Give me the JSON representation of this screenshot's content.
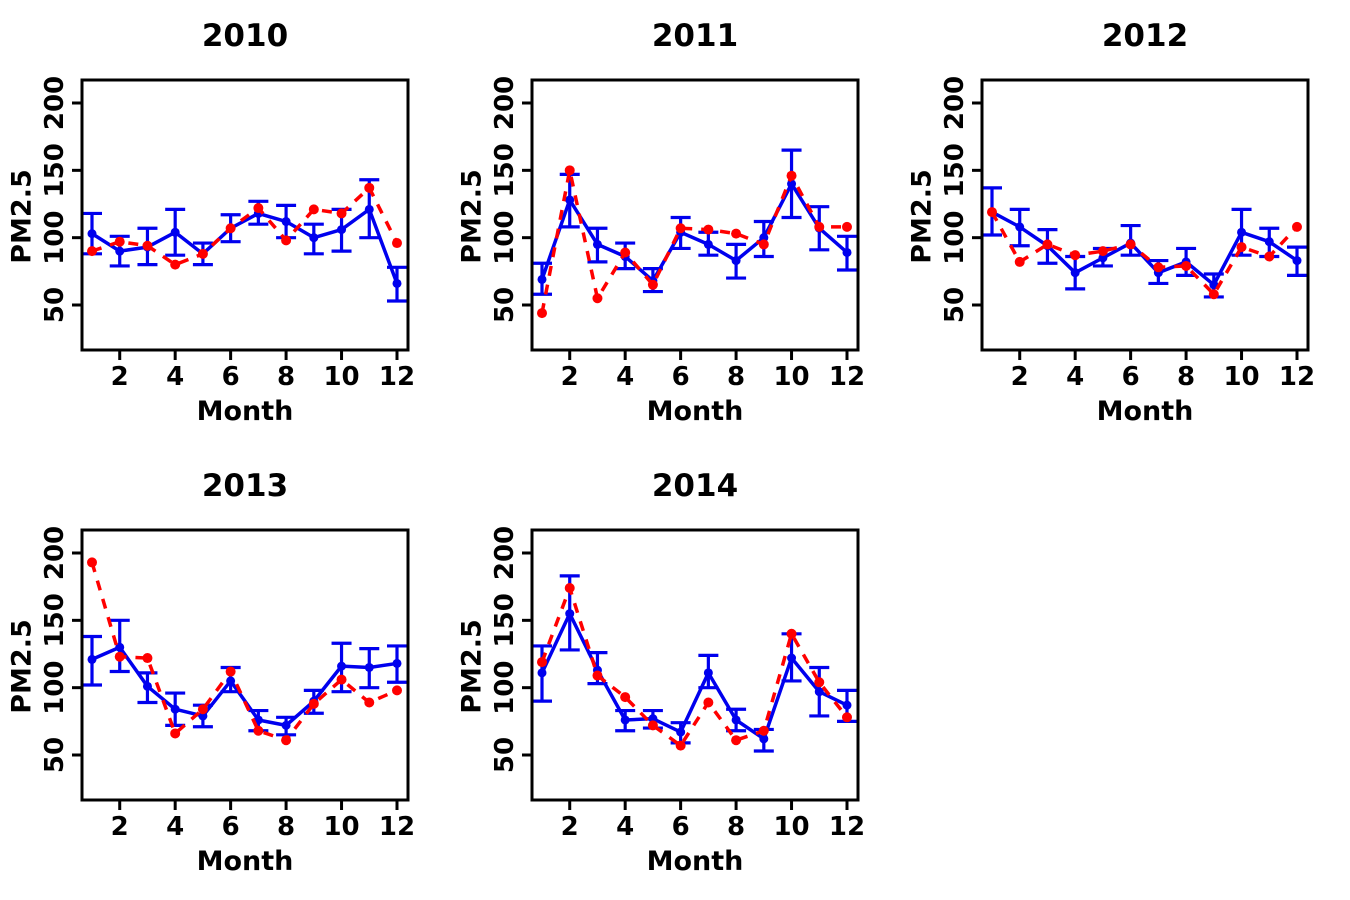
{
  "page": {
    "background": "#ffffff"
  },
  "colors": {
    "series_blue": "#0000EE",
    "series_red": "#FF0000",
    "axis": "#000000"
  },
  "chart_data": [
    {
      "type": "line",
      "title": "2010",
      "xlabel": "Month",
      "ylabel": "PM2.5",
      "x": [
        1,
        2,
        3,
        4,
        5,
        6,
        7,
        8,
        9,
        10,
        11,
        12
      ],
      "xticks": [
        2,
        4,
        6,
        8,
        10,
        12
      ],
      "yticks": [
        50,
        100,
        150,
        200
      ],
      "xlim": [
        0.56,
        12.44
      ],
      "ylim": [
        17,
        217
      ],
      "grid": false,
      "legend": "none",
      "series": [
        {
          "name": "blue-solid-errorbar",
          "color": "#0000EE",
          "line": "solid",
          "marker": "circle",
          "values": [
            103,
            90,
            93,
            104,
            88,
            107,
            118,
            112,
            100,
            106,
            121,
            66
          ],
          "err_lo": [
            88,
            79,
            80,
            87,
            80,
            97,
            110,
            100,
            88,
            90,
            100,
            53
          ],
          "err_hi": [
            118,
            101,
            107,
            121,
            96,
            117,
            127,
            124,
            110,
            121,
            143,
            78
          ]
        },
        {
          "name": "red-dashed",
          "color": "#FF0000",
          "line": "dashed",
          "marker": "circle",
          "values": [
            90,
            97,
            94,
            80,
            88,
            107,
            122,
            98,
            121,
            118,
            137,
            96
          ]
        }
      ]
    },
    {
      "type": "line",
      "title": "2011",
      "xlabel": "Month",
      "ylabel": "PM2.5",
      "x": [
        1,
        2,
        3,
        4,
        5,
        6,
        7,
        8,
        9,
        10,
        11,
        12
      ],
      "xticks": [
        2,
        4,
        6,
        8,
        10,
        12
      ],
      "yticks": [
        50,
        100,
        150,
        200
      ],
      "xlim": [
        0.56,
        12.44
      ],
      "ylim": [
        17,
        217
      ],
      "grid": false,
      "legend": "none",
      "series": [
        {
          "name": "blue-solid-errorbar",
          "color": "#0000EE",
          "line": "solid",
          "marker": "circle",
          "values": [
            69,
            128,
            95,
            86,
            68,
            104,
            95,
            83,
            100,
            140,
            107,
            89
          ],
          "err_lo": [
            58,
            108,
            82,
            77,
            60,
            92,
            87,
            70,
            86,
            115,
            91,
            76
          ],
          "err_hi": [
            81,
            147,
            107,
            96,
            77,
            115,
            104,
            95,
            112,
            165,
            123,
            101
          ]
        },
        {
          "name": "red-dashed",
          "color": "#FF0000",
          "line": "dashed",
          "marker": "circle",
          "values": [
            44,
            150,
            55,
            89,
            65,
            107,
            106,
            103,
            95,
            146,
            108,
            108
          ]
        }
      ]
    },
    {
      "type": "line",
      "title": "2012",
      "xlabel": "Month",
      "ylabel": "PM2.5",
      "x": [
        1,
        2,
        3,
        4,
        5,
        6,
        7,
        8,
        9,
        10,
        11,
        12
      ],
      "xticks": [
        2,
        4,
        6,
        8,
        10,
        12
      ],
      "yticks": [
        50,
        100,
        150,
        200
      ],
      "xlim": [
        0.56,
        12.44
      ],
      "ylim": [
        17,
        217
      ],
      "grid": false,
      "legend": "none",
      "series": [
        {
          "name": "blue-solid-errorbar",
          "color": "#0000EE",
          "line": "solid",
          "marker": "circle",
          "values": [
            119,
            108,
            94,
            74,
            85,
            96,
            74,
            82,
            65,
            104,
            97,
            83
          ],
          "err_lo": [
            102,
            94,
            81,
            62,
            79,
            87,
            66,
            72,
            56,
            87,
            86,
            72
          ],
          "err_hi": [
            137,
            121,
            106,
            86,
            92,
            109,
            83,
            92,
            73,
            121,
            107,
            93
          ]
        },
        {
          "name": "red-dashed",
          "color": "#FF0000",
          "line": "dashed",
          "marker": "circle",
          "values": [
            119,
            82,
            95,
            87,
            90,
            95,
            78,
            79,
            58,
            93,
            86,
            108
          ]
        }
      ]
    },
    {
      "type": "line",
      "title": "2013",
      "xlabel": "Month",
      "ylabel": "PM2.5",
      "x": [
        1,
        2,
        3,
        4,
        5,
        6,
        7,
        8,
        9,
        10,
        11,
        12
      ],
      "xticks": [
        2,
        4,
        6,
        8,
        10,
        12
      ],
      "yticks": [
        50,
        100,
        150,
        200
      ],
      "xlim": [
        0.56,
        12.44
      ],
      "ylim": [
        17,
        217
      ],
      "grid": false,
      "legend": "none",
      "series": [
        {
          "name": "blue-solid-errorbar",
          "color": "#0000EE",
          "line": "solid",
          "marker": "circle",
          "values": [
            121,
            130,
            101,
            84,
            79,
            105,
            76,
            72,
            90,
            116,
            115,
            118
          ],
          "err_lo": [
            102,
            112,
            89,
            72,
            71,
            97,
            68,
            65,
            81,
            97,
            100,
            104
          ],
          "err_hi": [
            138,
            150,
            111,
            96,
            87,
            115,
            83,
            78,
            98,
            133,
            129,
            131
          ]
        },
        {
          "name": "red-dashed",
          "color": "#FF0000",
          "line": "dashed",
          "marker": "circle",
          "values": [
            193,
            123,
            122,
            66,
            84,
            112,
            68,
            61,
            88,
            106,
            89,
            98
          ]
        }
      ]
    },
    {
      "type": "line",
      "title": "2014",
      "xlabel": "Month",
      "ylabel": "PM2.5",
      "x": [
        1,
        2,
        3,
        4,
        5,
        6,
        7,
        8,
        9,
        10,
        11,
        12
      ],
      "xticks": [
        2,
        4,
        6,
        8,
        10,
        12
      ],
      "yticks": [
        50,
        100,
        150,
        200
      ],
      "xlim": [
        0.56,
        12.44
      ],
      "ylim": [
        17,
        217
      ],
      "grid": false,
      "legend": "none",
      "series": [
        {
          "name": "blue-solid-errorbar",
          "color": "#0000EE",
          "line": "solid",
          "marker": "circle",
          "values": [
            111,
            155,
            113,
            76,
            77,
            67,
            111,
            76,
            62,
            122,
            97,
            87
          ],
          "err_lo": [
            90,
            128,
            103,
            68,
            70,
            59,
            100,
            68,
            53,
            105,
            79,
            75
          ],
          "err_hi": [
            131,
            183,
            126,
            83,
            83,
            74,
            124,
            84,
            69,
            140,
            115,
            98
          ]
        },
        {
          "name": "red-dashed",
          "color": "#FF0000",
          "line": "dashed",
          "marker": "circle",
          "values": [
            119,
            174,
            109,
            93,
            72,
            57,
            89,
            61,
            68,
            140,
            104,
            78
          ]
        }
      ]
    }
  ]
}
